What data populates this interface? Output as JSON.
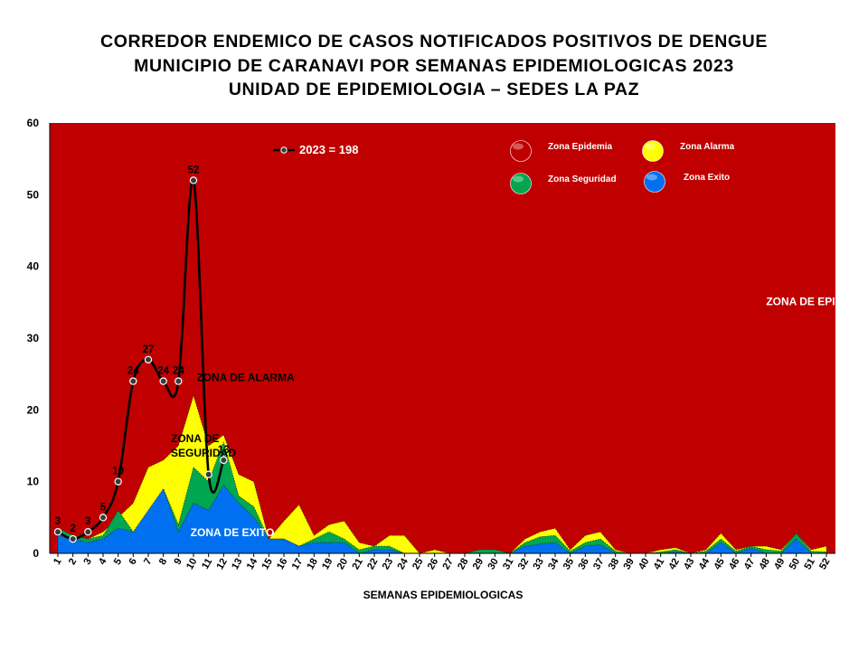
{
  "chart_data": {
    "type": "area",
    "title_lines": [
      "CORREDOR ENDEMICO DE CASOS NOTIFICADOS POSITIVOS DE DENGUE",
      "MUNICIPIO DE CARANAVI POR SEMANAS EPIDEMIOLOGICAS 2023",
      "UNIDAD DE EPIDEMIOLOGIA – SEDES LA PAZ"
    ],
    "xlabel": "SEMANAS EPIDEMIOLOGICAS",
    "ylabel": "",
    "ylim": [
      0,
      60
    ],
    "yticks": [
      0,
      10,
      20,
      30,
      40,
      50,
      60
    ],
    "grid": false,
    "legend_position": "top-right",
    "x": [
      "1",
      "2",
      "3",
      "4",
      "5",
      "6",
      "7",
      "8",
      "9",
      "10",
      "11",
      "12",
      "13",
      "14",
      "15",
      "16",
      "17",
      "18",
      "19",
      "20",
      "21",
      "22",
      "23",
      "24",
      "25",
      "26",
      "27",
      "28",
      "29",
      "30",
      "31",
      "32",
      "33",
      "34",
      "35",
      "36",
      "37",
      "38",
      "39",
      "40",
      "41",
      "42",
      "43",
      "44",
      "45",
      "46",
      "47",
      "48",
      "49",
      "50",
      "51",
      "52"
    ],
    "zones": [
      {
        "name": "Zona Epidemia",
        "color": "#c00000",
        "fills_background": true
      },
      {
        "name": "Zona Alarma",
        "color": "#ffff00",
        "values": [
          3.5,
          2.5,
          2,
          3,
          5,
          7,
          12,
          13,
          15,
          22,
          15,
          16.5,
          11,
          10,
          2,
          4.5,
          6.8,
          2.5,
          4,
          4.5,
          1.5,
          1,
          2.5,
          2.5,
          0,
          0.5,
          0,
          0,
          0.5,
          0.5,
          0,
          2,
          3,
          3.5,
          0.5,
          2.5,
          3,
          0.5,
          0,
          0,
          0.5,
          0.8,
          0,
          0.5,
          2.8,
          0.5,
          1,
          1,
          0.5,
          2.8,
          0.5,
          1
        ]
      },
      {
        "name": "Zona Seguridad",
        "color": "#00a650",
        "values": [
          3.5,
          2.5,
          2,
          2.5,
          6,
          3,
          5.5,
          9,
          4,
          12,
          10,
          15.5,
          8,
          6.5,
          2,
          2,
          1,
          2,
          3,
          2,
          0.5,
          1,
          1,
          0,
          0,
          0,
          0,
          0,
          0.5,
          0.5,
          0,
          1.5,
          2.3,
          2.5,
          0.3,
          1.5,
          2,
          0.3,
          0,
          0,
          0.2,
          0.5,
          0,
          0.3,
          2,
          0.3,
          1,
          0.5,
          0.3,
          2.8,
          0.3,
          0.2
        ]
      },
      {
        "name": "Zona Exito",
        "color": "#0070f0",
        "values": [
          2.5,
          2,
          1.5,
          2,
          3.5,
          3,
          6,
          9,
          3,
          7,
          6,
          9.5,
          7,
          5,
          2,
          2,
          1,
          1.5,
          1.5,
          1.5,
          0,
          0.5,
          0.5,
          0,
          0,
          0,
          0,
          0,
          0,
          0,
          0,
          1,
          1.3,
          1.5,
          0,
          1,
          1.2,
          0,
          0,
          0,
          0,
          0.2,
          0,
          0,
          1.5,
          0,
          0.7,
          0,
          0,
          2,
          0,
          0
        ]
      }
    ],
    "series": [
      {
        "name": "2023 = 198",
        "color": "#000000",
        "x": [
          "1",
          "2",
          "3",
          "4",
          "5",
          "6",
          "7",
          "8",
          "9",
          "10",
          "11",
          "12"
        ],
        "values": [
          3,
          2,
          3,
          5,
          10,
          24,
          27,
          24,
          24,
          52,
          11,
          13
        ],
        "labels": [
          "3",
          "2",
          "3",
          "5",
          "10",
          "24",
          "27",
          "24",
          "24",
          "52",
          "",
          "13"
        ]
      }
    ],
    "annotations": [
      {
        "text": "ZONA DE EPIDEMIA",
        "x": 48,
        "y": 34.6,
        "color": "#ffffff"
      },
      {
        "text": "ZONA DE ALARMA",
        "x": 10.2,
        "y": 24,
        "color": "#000000"
      },
      {
        "text": "ZONA DE",
        "x": 8.5,
        "y": 15.5,
        "color": "#000000"
      },
      {
        "text": "SEGURIDAD",
        "x": 8.5,
        "y": 13.5,
        "color": "#000000"
      },
      {
        "text": "ZONA DE  EXITO",
        "x": 9.8,
        "y": 2.4,
        "color": "#ffffff"
      }
    ]
  }
}
